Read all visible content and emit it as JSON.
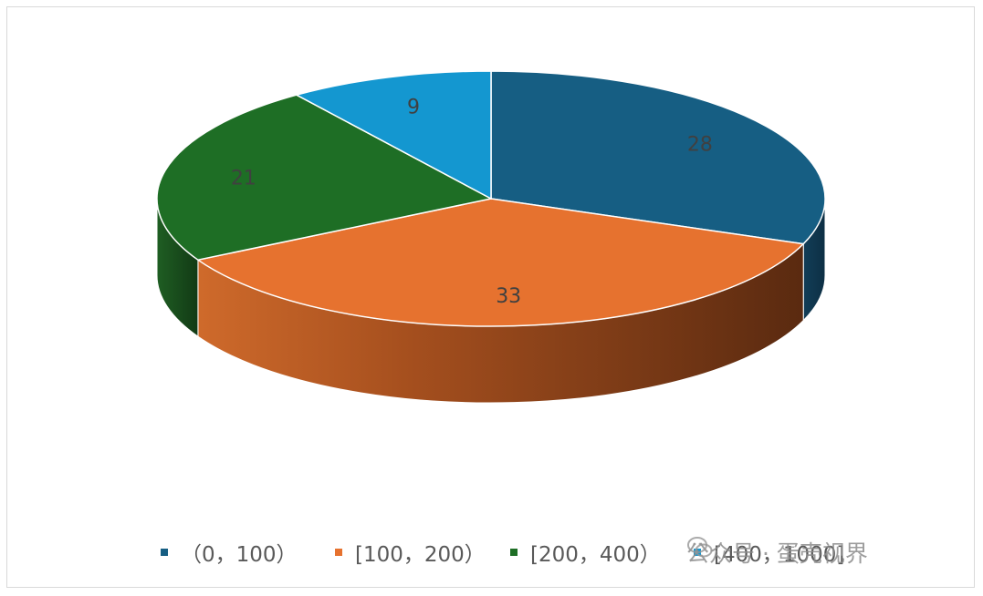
{
  "chart_data": {
    "type": "pie",
    "style": "3d",
    "title": "",
    "categories": [
      "（0，100）",
      "[100，200）",
      "[200，400）",
      "[400，1000]"
    ],
    "values": [
      28,
      33,
      21,
      9
    ],
    "data_labels": [
      "28",
      "33",
      "21",
      "9"
    ],
    "colors": [
      "#165e83",
      "#e6722f",
      "#1e6e25",
      "#1497d0"
    ],
    "legend_position": "bottom"
  },
  "watermark": {
    "text": "公众号 · 蛋壳视界"
  }
}
